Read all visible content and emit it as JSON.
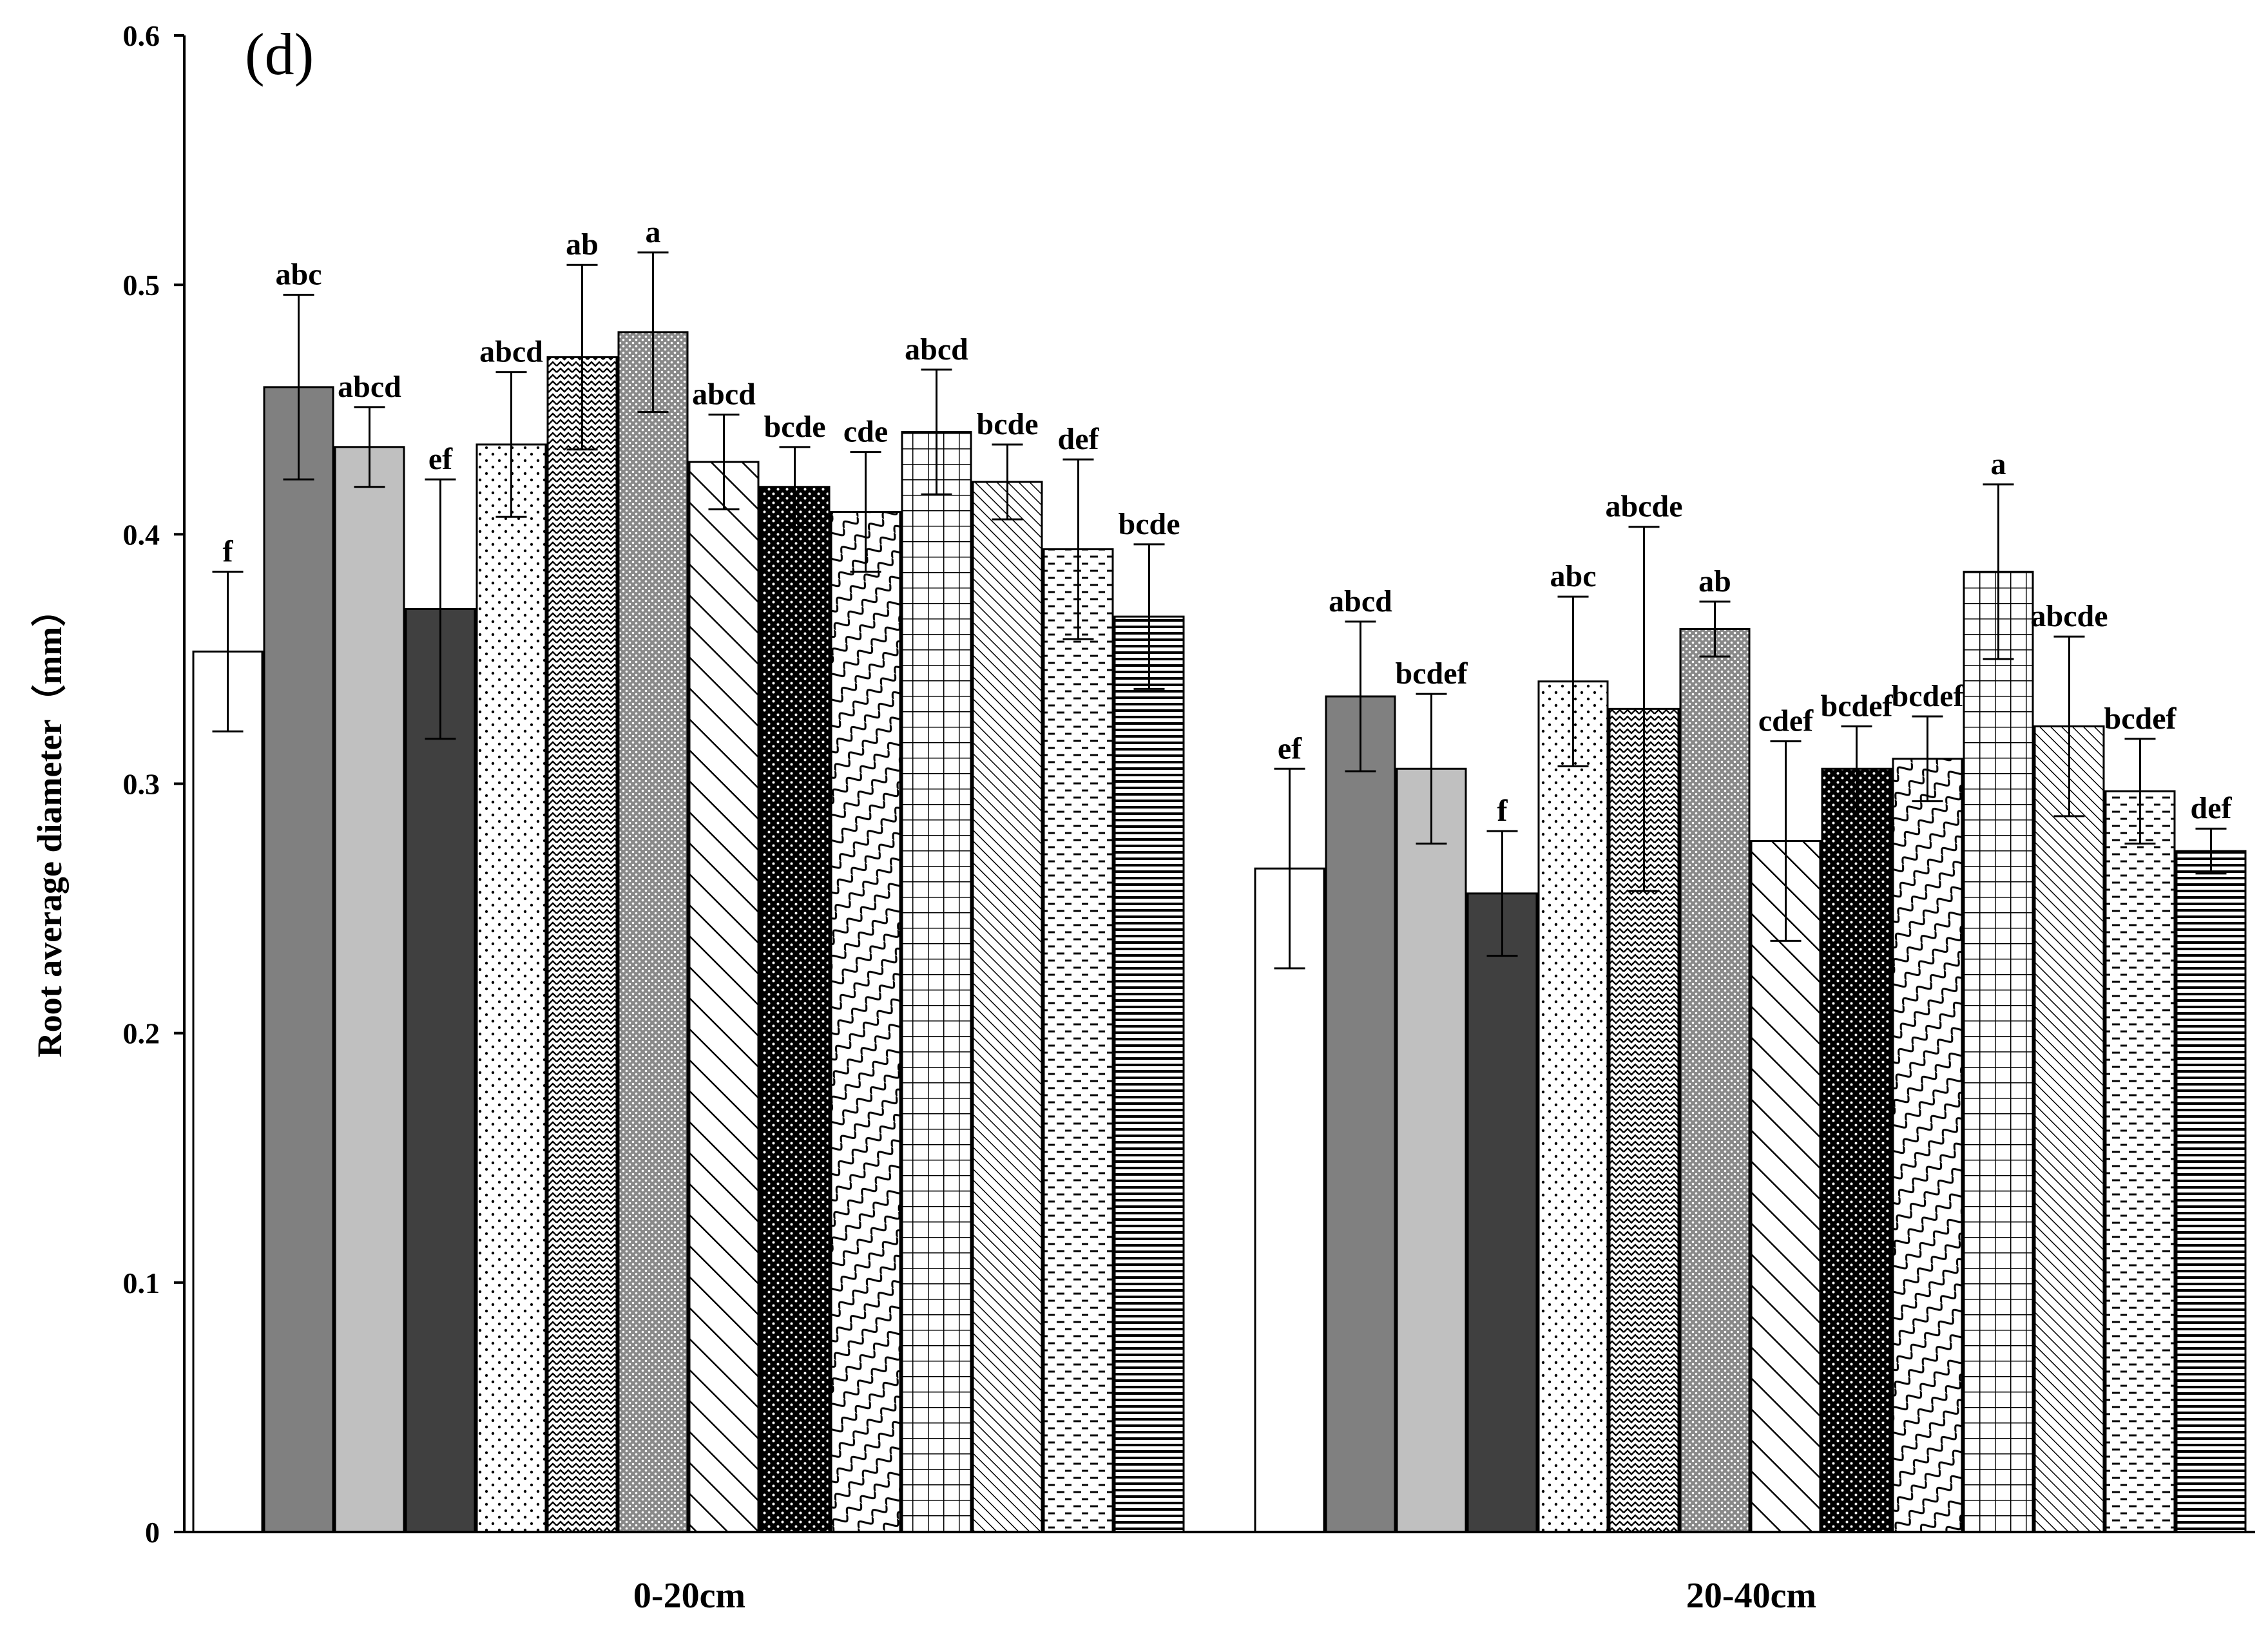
{
  "chart_data": {
    "type": "bar",
    "panel_label": "(d)",
    "ylabel": "Root average diameter（mm）",
    "ylim": [
      0,
      0.6
    ],
    "yticks": [
      0,
      0.1,
      0.2,
      0.3,
      0.4,
      0.5,
      0.6
    ],
    "ytick_labels": [
      "0",
      "0.1",
      "0.2",
      "0.3",
      "0.4",
      "0.5",
      "0.6"
    ],
    "categories": [
      "0-20cm",
      "20-40cm"
    ],
    "grid": false,
    "legend": "none",
    "series": [
      {
        "fill": "white",
        "values": [
          0.353,
          0.266
        ],
        "errors": [
          0.032,
          0.04
        ],
        "labels": [
          "f",
          "ef"
        ]
      },
      {
        "fill": "gray",
        "values": [
          0.459,
          0.335
        ],
        "errors": [
          0.037,
          0.03
        ],
        "labels": [
          "abc",
          "abcd"
        ]
      },
      {
        "fill": "lightgray",
        "values": [
          0.435,
          0.306
        ],
        "errors": [
          0.016,
          0.03
        ],
        "labels": [
          "abcd",
          "bcdef"
        ]
      },
      {
        "fill": "darkgray",
        "values": [
          0.37,
          0.256
        ],
        "errors": [
          0.052,
          0.025
        ],
        "labels": [
          "ef",
          "f"
        ]
      },
      {
        "fill": "dots",
        "values": [
          0.436,
          0.341
        ],
        "errors": [
          0.029,
          0.034
        ],
        "labels": [
          "abcd",
          "abc"
        ]
      },
      {
        "fill": "zigzag",
        "values": [
          0.471,
          0.33
        ],
        "errors": [
          0.037,
          0.073
        ],
        "labels": [
          "ab",
          "abcde"
        ]
      },
      {
        "fill": "dotted-gray",
        "values": [
          0.481,
          0.362
        ],
        "errors": [
          0.032,
          0.011
        ],
        "labels": [
          "a",
          "ab"
        ]
      },
      {
        "fill": "wide-diagonal",
        "values": [
          0.429,
          0.277
        ],
        "errors": [
          0.019,
          0.04
        ],
        "labels": [
          "abcd",
          "cdef"
        ]
      },
      {
        "fill": "black-dots",
        "values": [
          0.419,
          0.306
        ],
        "errors": [
          0.016,
          0.017
        ],
        "labels": [
          "bcde",
          "bcdef"
        ]
      },
      {
        "fill": "waves",
        "values": [
          0.409,
          0.31
        ],
        "errors": [
          0.024,
          0.017
        ],
        "labels": [
          "cde",
          "bcdef"
        ]
      },
      {
        "fill": "grid",
        "values": [
          0.441,
          0.385
        ],
        "errors": [
          0.025,
          0.035
        ],
        "labels": [
          "abcd",
          "a"
        ]
      },
      {
        "fill": "narrow-diagonal",
        "values": [
          0.421,
          0.323
        ],
        "errors": [
          0.015,
          0.036
        ],
        "labels": [
          "bcde",
          "abcde"
        ]
      },
      {
        "fill": "dashes",
        "values": [
          0.394,
          0.297
        ],
        "errors": [
          0.036,
          0.021
        ],
        "labels": [
          "def",
          "bcdef"
        ]
      },
      {
        "fill": "horizontal-lines",
        "values": [
          0.367,
          0.273
        ],
        "errors": [
          0.029,
          0.009
        ],
        "labels": [
          "bcde",
          "def"
        ]
      }
    ]
  }
}
